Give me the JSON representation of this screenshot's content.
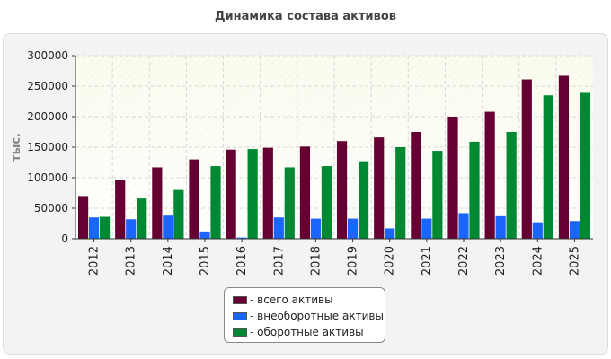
{
  "chart_data": {
    "type": "bar",
    "title": "Динамика состава активов",
    "ylabel": "тыс.",
    "xlabel": "",
    "ylim": [
      0,
      300000
    ],
    "yticks": [
      "0",
      "50000",
      "100000",
      "150000",
      "200000",
      "250000",
      "300000"
    ],
    "grid": true,
    "legend_position": "bottom",
    "categories": [
      "2012",
      "2013",
      "2014",
      "2015",
      "2016",
      "2017",
      "2018",
      "2019",
      "2020",
      "2021",
      "2022",
      "2023",
      "2024",
      "2025"
    ],
    "series": [
      {
        "name": "- всего активы",
        "color": "#660033",
        "values": [
          70000,
          97000,
          117000,
          130000,
          146000,
          149000,
          151000,
          160000,
          166000,
          175000,
          200000,
          208000,
          261000,
          267000
        ]
      },
      {
        "name": "- внеоборотные активы",
        "color": "#1a66ff",
        "values": [
          35000,
          32000,
          38000,
          12000,
          2000,
          35000,
          33000,
          33000,
          17000,
          33000,
          42000,
          37000,
          27000,
          29000
        ]
      },
      {
        "name": "- оборотные активы",
        "color": "#008833",
        "values": [
          36000,
          66000,
          80000,
          119000,
          147000,
          117000,
          119000,
          127000,
          150000,
          144000,
          159000,
          175000,
          235000,
          239000
        ]
      }
    ]
  }
}
